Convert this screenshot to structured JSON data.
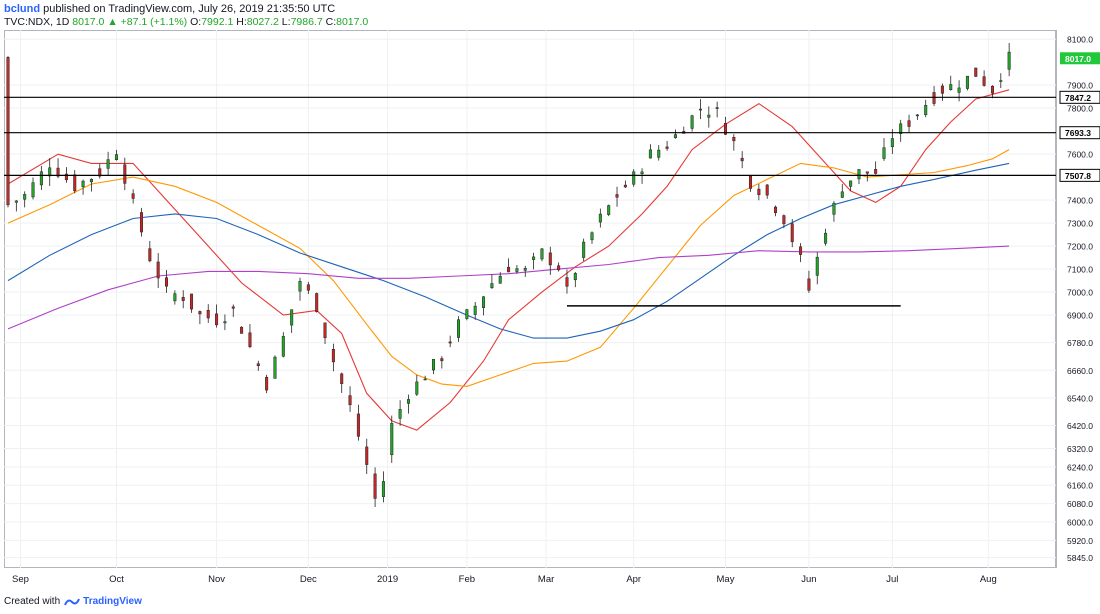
{
  "header": {
    "author": "bclund",
    "published_text": "published on TradingView.com, July 26, 2019 21:35:50 UTC"
  },
  "ticker": {
    "symbol": "TVC:NDX, 1D",
    "last": "8017.0",
    "change": "+87.1 (+1.1%)",
    "o_label": "O:",
    "o_val": "7992.1",
    "h_label": "H:",
    "h_val": "8027.2",
    "l_label": "L:",
    "l_val": "7986.7",
    "c_label": "C:",
    "c_val": "8017.0"
  },
  "footer": {
    "created_with": "Created with",
    "brand": "TradingView"
  },
  "colors": {
    "up": "#21a628",
    "down": "#c62828",
    "ma_red": "#e53935",
    "ma_orange": "#ff9800",
    "ma_blue": "#1e63b8",
    "ma_purple": "#b040c8",
    "level_line": "#000000",
    "last_badge": "#21c83a"
  },
  "chart_data": {
    "type": "candlestick",
    "instrument": "TVC:NDX",
    "interval": "1D",
    "ylim": [
      5800,
      8140
    ],
    "y_ticks": [
      8100,
      8017,
      7900,
      7847.2,
      7800,
      7693.3,
      7600,
      7507.8,
      7400,
      7300,
      7200,
      7100,
      7000,
      6900,
      6780,
      6660,
      6540,
      6420,
      6320,
      6240,
      6160,
      6080,
      6000,
      5920,
      5845
    ],
    "y_tick_labels": [
      "8100.0",
      "8017.0",
      "7900.0",
      "7847.2",
      "7800.0",
      "7693.3",
      "7600.0",
      "7507.8",
      "7400.0",
      "7300.0",
      "7200.0",
      "7100.0",
      "7000.0",
      "6900.0",
      "6780.0",
      "6660.0",
      "6540.0",
      "6420.0",
      "6320.0",
      "6240.0",
      "6160.0",
      "6080.0",
      "6000.0",
      "5920.0",
      "5845.0"
    ],
    "x_labels": [
      "Sep",
      "Oct",
      "Nov",
      "Dec",
      "2019",
      "Feb",
      "Mar",
      "Apr",
      "May",
      "Jun",
      "Jul",
      "Aug"
    ],
    "x_label_day_index": [
      3,
      26,
      50,
      72,
      91,
      110,
      129,
      150,
      172,
      192,
      212,
      235
    ],
    "total_days": 245,
    "horizontal_levels": [
      {
        "value": 7847.2,
        "label": "7847.2"
      },
      {
        "value": 7693.3,
        "label": "7693.3"
      },
      {
        "value": 7507.8,
        "label": "7507.8"
      }
    ],
    "support_line": {
      "value": 6940,
      "start_day": 134,
      "end_day": 214
    },
    "last_price": {
      "value": 8017.0,
      "label": "8017.0"
    },
    "moving_averages": [
      {
        "color_key": "ma_red",
        "points": [
          [
            0,
            7470
          ],
          [
            12,
            7600
          ],
          [
            20,
            7560
          ],
          [
            30,
            7560
          ],
          [
            38,
            7400
          ],
          [
            46,
            7240
          ],
          [
            56,
            7040
          ],
          [
            66,
            6900
          ],
          [
            74,
            6920
          ],
          [
            80,
            6820
          ],
          [
            86,
            6560
          ],
          [
            92,
            6440
          ],
          [
            98,
            6400
          ],
          [
            106,
            6520
          ],
          [
            114,
            6700
          ],
          [
            120,
            6880
          ],
          [
            128,
            7000
          ],
          [
            136,
            7110
          ],
          [
            144,
            7200
          ],
          [
            152,
            7340
          ],
          [
            158,
            7460
          ],
          [
            164,
            7620
          ],
          [
            172,
            7730
          ],
          [
            180,
            7820
          ],
          [
            188,
            7720
          ],
          [
            194,
            7600
          ],
          [
            202,
            7440
          ],
          [
            208,
            7390
          ],
          [
            214,
            7460
          ],
          [
            220,
            7620
          ],
          [
            226,
            7740
          ],
          [
            232,
            7840
          ],
          [
            240,
            7880
          ]
        ]
      },
      {
        "color_key": "ma_orange",
        "points": [
          [
            0,
            7300
          ],
          [
            10,
            7380
          ],
          [
            20,
            7470
          ],
          [
            30,
            7500
          ],
          [
            40,
            7460
          ],
          [
            50,
            7390
          ],
          [
            60,
            7290
          ],
          [
            70,
            7190
          ],
          [
            78,
            7050
          ],
          [
            86,
            6860
          ],
          [
            92,
            6720
          ],
          [
            98,
            6640
          ],
          [
            104,
            6600
          ],
          [
            110,
            6590
          ],
          [
            118,
            6640
          ],
          [
            126,
            6690
          ],
          [
            134,
            6700
          ],
          [
            142,
            6760
          ],
          [
            150,
            6930
          ],
          [
            158,
            7110
          ],
          [
            166,
            7290
          ],
          [
            174,
            7420
          ],
          [
            182,
            7490
          ],
          [
            190,
            7560
          ],
          [
            198,
            7540
          ],
          [
            206,
            7500
          ],
          [
            214,
            7510
          ],
          [
            222,
            7520
          ],
          [
            230,
            7550
          ],
          [
            236,
            7580
          ],
          [
            240,
            7620
          ]
        ]
      },
      {
        "color_key": "ma_blue",
        "points": [
          [
            0,
            7050
          ],
          [
            10,
            7160
          ],
          [
            20,
            7250
          ],
          [
            30,
            7320
          ],
          [
            40,
            7340
          ],
          [
            50,
            7320
          ],
          [
            60,
            7250
          ],
          [
            70,
            7170
          ],
          [
            80,
            7110
          ],
          [
            90,
            7050
          ],
          [
            100,
            6980
          ],
          [
            110,
            6900
          ],
          [
            118,
            6840
          ],
          [
            126,
            6800
          ],
          [
            134,
            6800
          ],
          [
            142,
            6830
          ],
          [
            150,
            6880
          ],
          [
            158,
            6960
          ],
          [
            166,
            7060
          ],
          [
            174,
            7160
          ],
          [
            182,
            7250
          ],
          [
            190,
            7320
          ],
          [
            198,
            7380
          ],
          [
            206,
            7420
          ],
          [
            214,
            7460
          ],
          [
            222,
            7490
          ],
          [
            232,
            7530
          ],
          [
            240,
            7560
          ]
        ]
      },
      {
        "color_key": "ma_purple",
        "points": [
          [
            0,
            6840
          ],
          [
            12,
            6930
          ],
          [
            24,
            7010
          ],
          [
            36,
            7070
          ],
          [
            48,
            7090
          ],
          [
            60,
            7090
          ],
          [
            72,
            7080
          ],
          [
            84,
            7060
          ],
          [
            96,
            7060
          ],
          [
            108,
            7070
          ],
          [
            120,
            7080
          ],
          [
            132,
            7100
          ],
          [
            144,
            7120
          ],
          [
            156,
            7150
          ],
          [
            168,
            7160
          ],
          [
            180,
            7180
          ],
          [
            192,
            7175
          ],
          [
            204,
            7175
          ],
          [
            216,
            7180
          ],
          [
            228,
            7190
          ],
          [
            240,
            7200
          ]
        ]
      }
    ]
  }
}
